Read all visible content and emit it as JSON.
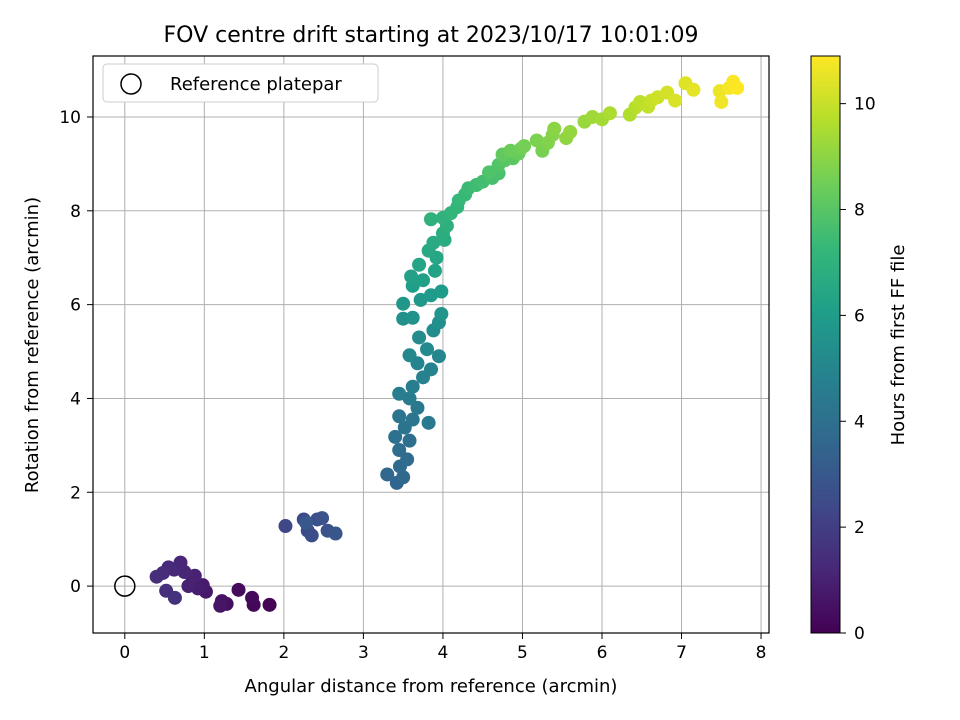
{
  "chart_data": {
    "type": "scatter",
    "title": "FOV centre drift starting at 2023/10/17 10:01:09",
    "xlabel": "Angular distance from reference (arcmin)",
    "ylabel": "Rotation from reference (arcmin)",
    "xlim": [
      -0.4,
      8.1
    ],
    "ylim": [
      -1.0,
      11.3
    ],
    "xticks": [
      0,
      1,
      2,
      3,
      4,
      5,
      6,
      7,
      8
    ],
    "yticks": [
      0,
      2,
      4,
      6,
      8,
      10
    ],
    "grid": true,
    "legend": {
      "position": "top-left",
      "entries": [
        "Reference platepar"
      ]
    },
    "reference_point": {
      "x": 0,
      "y": 0
    },
    "colorbar": {
      "label": "Hours from first FF file",
      "range": [
        0,
        10.9
      ],
      "ticks": [
        0,
        2,
        4,
        6,
        8,
        10
      ],
      "colormap": "viridis"
    },
    "colormap_stops": [
      "#440154",
      "#482878",
      "#3e4a89",
      "#31688e",
      "#26828e",
      "#1f9e89",
      "#35b779",
      "#6ece58",
      "#b5de2b",
      "#fde725"
    ],
    "points": [
      {
        "x": 1.82,
        "y": -0.4,
        "t": 0.05
      },
      {
        "x": 1.62,
        "y": -0.4,
        "t": 0.15
      },
      {
        "x": 1.6,
        "y": -0.25,
        "t": 0.25
      },
      {
        "x": 1.43,
        "y": -0.08,
        "t": 0.35
      },
      {
        "x": 1.28,
        "y": -0.38,
        "t": 0.45
      },
      {
        "x": 1.22,
        "y": -0.32,
        "t": 0.55
      },
      {
        "x": 1.2,
        "y": -0.42,
        "t": 0.62
      },
      {
        "x": 1.02,
        "y": -0.12,
        "t": 0.7
      },
      {
        "x": 0.98,
        "y": 0.02,
        "t": 0.78
      },
      {
        "x": 0.92,
        "y": -0.05,
        "t": 0.86
      },
      {
        "x": 0.85,
        "y": 0.1,
        "t": 0.92
      },
      {
        "x": 0.8,
        "y": 0.0,
        "t": 1.0
      },
      {
        "x": 0.88,
        "y": 0.22,
        "t": 1.06
      },
      {
        "x": 0.75,
        "y": 0.3,
        "t": 1.12
      },
      {
        "x": 0.7,
        "y": 0.5,
        "t": 1.18
      },
      {
        "x": 0.62,
        "y": 0.35,
        "t": 1.25
      },
      {
        "x": 0.55,
        "y": 0.4,
        "t": 1.32
      },
      {
        "x": 0.48,
        "y": 0.28,
        "t": 1.38
      },
      {
        "x": 0.4,
        "y": 0.2,
        "t": 1.44
      },
      {
        "x": 0.52,
        "y": -0.1,
        "t": 1.5
      },
      {
        "x": 0.63,
        "y": -0.25,
        "t": 1.56
      },
      {
        "x": 2.02,
        "y": 1.28,
        "t": 2.3
      },
      {
        "x": 2.25,
        "y": 1.42,
        "t": 2.4
      },
      {
        "x": 2.3,
        "y": 1.18,
        "t": 2.5
      },
      {
        "x": 2.35,
        "y": 1.08,
        "t": 2.58
      },
      {
        "x": 2.42,
        "y": 1.42,
        "t": 2.66
      },
      {
        "x": 2.48,
        "y": 1.45,
        "t": 2.74
      },
      {
        "x": 2.55,
        "y": 1.18,
        "t": 2.82
      },
      {
        "x": 2.65,
        "y": 1.12,
        "t": 2.9
      },
      {
        "x": 2.28,
        "y": 1.35,
        "t": 2.96
      },
      {
        "x": 3.42,
        "y": 2.2,
        "t": 3.5
      },
      {
        "x": 3.3,
        "y": 2.38,
        "t": 3.58
      },
      {
        "x": 3.5,
        "y": 2.32,
        "t": 3.66
      },
      {
        "x": 3.46,
        "y": 2.55,
        "t": 3.74
      },
      {
        "x": 3.55,
        "y": 2.7,
        "t": 3.82
      },
      {
        "x": 3.45,
        "y": 2.9,
        "t": 3.9
      },
      {
        "x": 3.58,
        "y": 3.1,
        "t": 3.98
      },
      {
        "x": 3.4,
        "y": 3.18,
        "t": 4.06
      },
      {
        "x": 3.52,
        "y": 3.38,
        "t": 4.14
      },
      {
        "x": 3.62,
        "y": 3.55,
        "t": 4.22
      },
      {
        "x": 3.45,
        "y": 3.62,
        "t": 4.3
      },
      {
        "x": 3.68,
        "y": 3.8,
        "t": 4.38
      },
      {
        "x": 3.82,
        "y": 3.48,
        "t": 4.46
      },
      {
        "x": 3.58,
        "y": 4.0,
        "t": 4.54
      },
      {
        "x": 3.45,
        "y": 4.1,
        "t": 4.62
      },
      {
        "x": 3.62,
        "y": 4.25,
        "t": 4.7
      },
      {
        "x": 3.75,
        "y": 4.45,
        "t": 4.78
      },
      {
        "x": 3.85,
        "y": 4.62,
        "t": 4.86
      },
      {
        "x": 3.68,
        "y": 4.75,
        "t": 4.94
      },
      {
        "x": 3.95,
        "y": 4.9,
        "t": 5.02
      },
      {
        "x": 3.58,
        "y": 4.92,
        "t": 5.1
      },
      {
        "x": 3.8,
        "y": 5.05,
        "t": 5.18
      },
      {
        "x": 3.7,
        "y": 5.3,
        "t": 5.26
      },
      {
        "x": 3.88,
        "y": 5.45,
        "t": 5.34
      },
      {
        "x": 3.95,
        "y": 5.62,
        "t": 5.42
      },
      {
        "x": 3.5,
        "y": 5.7,
        "t": 5.5
      },
      {
        "x": 3.62,
        "y": 5.72,
        "t": 5.58
      },
      {
        "x": 3.98,
        "y": 5.8,
        "t": 5.66
      },
      {
        "x": 3.5,
        "y": 6.02,
        "t": 5.74
      },
      {
        "x": 3.72,
        "y": 6.1,
        "t": 5.82
      },
      {
        "x": 3.85,
        "y": 6.2,
        "t": 5.9
      },
      {
        "x": 3.98,
        "y": 6.28,
        "t": 5.98
      },
      {
        "x": 3.62,
        "y": 6.4,
        "t": 6.06
      },
      {
        "x": 3.75,
        "y": 6.52,
        "t": 6.14
      },
      {
        "x": 3.6,
        "y": 6.6,
        "t": 6.22
      },
      {
        "x": 3.9,
        "y": 6.72,
        "t": 6.3
      },
      {
        "x": 3.7,
        "y": 6.85,
        "t": 6.38
      },
      {
        "x": 3.92,
        "y": 7.0,
        "t": 6.46
      },
      {
        "x": 3.82,
        "y": 7.15,
        "t": 6.54
      },
      {
        "x": 3.88,
        "y": 7.32,
        "t": 6.62
      },
      {
        "x": 4.02,
        "y": 7.38,
        "t": 6.7
      },
      {
        "x": 4.0,
        "y": 7.52,
        "t": 6.78
      },
      {
        "x": 4.05,
        "y": 7.68,
        "t": 6.86
      },
      {
        "x": 3.85,
        "y": 7.82,
        "t": 6.94
      },
      {
        "x": 4.0,
        "y": 7.85,
        "t": 7.02
      },
      {
        "x": 4.1,
        "y": 7.95,
        "t": 7.1
      },
      {
        "x": 4.18,
        "y": 8.08,
        "t": 7.18
      },
      {
        "x": 4.2,
        "y": 8.22,
        "t": 7.26
      },
      {
        "x": 4.28,
        "y": 8.35,
        "t": 7.34
      },
      {
        "x": 4.32,
        "y": 8.48,
        "t": 7.42
      },
      {
        "x": 4.42,
        "y": 8.55,
        "t": 7.5
      },
      {
        "x": 4.5,
        "y": 8.62,
        "t": 7.58
      },
      {
        "x": 4.62,
        "y": 8.7,
        "t": 7.66
      },
      {
        "x": 4.7,
        "y": 8.8,
        "t": 7.74
      },
      {
        "x": 4.58,
        "y": 8.82,
        "t": 7.82
      },
      {
        "x": 4.7,
        "y": 8.98,
        "t": 7.9
      },
      {
        "x": 4.78,
        "y": 9.08,
        "t": 8.0
      },
      {
        "x": 4.88,
        "y": 9.12,
        "t": 8.1
      },
      {
        "x": 4.75,
        "y": 9.2,
        "t": 8.2
      },
      {
        "x": 4.95,
        "y": 9.22,
        "t": 8.3
      },
      {
        "x": 4.85,
        "y": 9.28,
        "t": 8.4
      },
      {
        "x": 4.98,
        "y": 9.32,
        "t": 8.48
      },
      {
        "x": 5.02,
        "y": 9.38,
        "t": 8.56
      },
      {
        "x": 5.25,
        "y": 9.28,
        "t": 8.64
      },
      {
        "x": 5.18,
        "y": 9.5,
        "t": 8.72
      },
      {
        "x": 5.32,
        "y": 9.45,
        "t": 8.8
      },
      {
        "x": 5.38,
        "y": 9.62,
        "t": 8.88
      },
      {
        "x": 5.4,
        "y": 9.75,
        "t": 8.96
      },
      {
        "x": 5.55,
        "y": 9.55,
        "t": 9.04
      },
      {
        "x": 5.6,
        "y": 9.68,
        "t": 9.12
      },
      {
        "x": 5.78,
        "y": 9.9,
        "t": 9.2
      },
      {
        "x": 5.88,
        "y": 10.0,
        "t": 9.3
      },
      {
        "x": 6.0,
        "y": 9.95,
        "t": 9.4
      },
      {
        "x": 6.1,
        "y": 10.08,
        "t": 9.5
      },
      {
        "x": 6.35,
        "y": 10.05,
        "t": 9.6
      },
      {
        "x": 6.42,
        "y": 10.2,
        "t": 9.7
      },
      {
        "x": 6.48,
        "y": 10.32,
        "t": 9.8
      },
      {
        "x": 6.58,
        "y": 10.22,
        "t": 9.9
      },
      {
        "x": 6.62,
        "y": 10.35,
        "t": 10.0
      },
      {
        "x": 6.7,
        "y": 10.42,
        "t": 10.1
      },
      {
        "x": 6.82,
        "y": 10.52,
        "t": 10.2
      },
      {
        "x": 6.92,
        "y": 10.35,
        "t": 10.3
      },
      {
        "x": 7.05,
        "y": 10.72,
        "t": 10.4
      },
      {
        "x": 7.15,
        "y": 10.58,
        "t": 10.5
      },
      {
        "x": 7.48,
        "y": 10.55,
        "t": 10.6
      },
      {
        "x": 7.5,
        "y": 10.32,
        "t": 10.68
      },
      {
        "x": 7.6,
        "y": 10.62,
        "t": 10.76
      },
      {
        "x": 7.65,
        "y": 10.75,
        "t": 10.84
      },
      {
        "x": 7.7,
        "y": 10.62,
        "t": 10.9
      }
    ]
  }
}
